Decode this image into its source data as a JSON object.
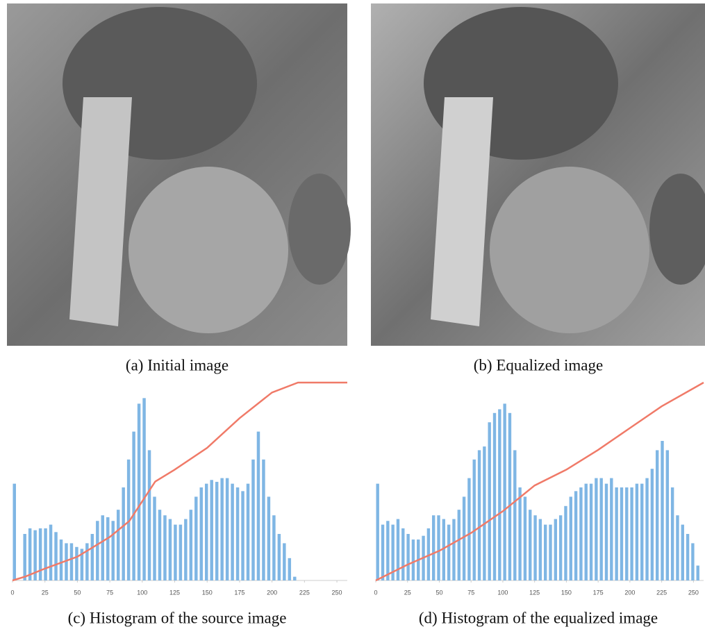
{
  "figure": {
    "panels": [
      {
        "caption": "(a) Initial image"
      },
      {
        "caption": "(b) Equalized image"
      },
      {
        "caption": "(c) Histogram of the source image"
      },
      {
        "caption": "(d) Histogram of the equalized image"
      }
    ]
  },
  "chart_data": [
    {
      "type": "histogram",
      "bins": [
        0,
        4,
        8,
        12,
        16,
        20,
        24,
        28,
        32,
        36,
        40,
        44,
        48,
        52,
        56,
        60,
        64,
        68,
        72,
        76,
        80,
        84,
        88,
        92,
        96,
        100,
        104,
        108,
        112,
        116,
        120,
        124,
        128,
        132,
        136,
        140,
        144,
        148,
        152,
        156,
        160,
        164,
        168,
        172,
        176,
        180,
        184,
        188,
        192,
        196,
        200,
        204,
        208,
        212,
        216,
        220,
        224,
        228,
        232,
        236,
        240,
        244,
        248,
        252,
        256
      ],
      "counts": [
        52,
        0,
        25,
        28,
        27,
        28,
        28,
        30,
        26,
        22,
        20,
        20,
        18,
        17,
        20,
        25,
        32,
        35,
        34,
        32,
        38,
        50,
        65,
        80,
        95,
        98,
        70,
        45,
        38,
        35,
        33,
        30,
        30,
        33,
        38,
        45,
        50,
        52,
        54,
        53,
        55,
        55,
        52,
        50,
        48,
        52,
        65,
        80,
        65,
        45,
        35,
        25,
        20,
        12,
        2,
        0,
        0,
        0,
        0,
        0,
        0,
        0,
        0,
        0
      ],
      "color": "#7fb6e4",
      "ylim": [
        0,
        106
      ],
      "xlim": [
        0,
        258
      ],
      "xticks": [
        0,
        25,
        50,
        75,
        100,
        125,
        150,
        175,
        200,
        225,
        250
      ],
      "y2lim": [
        0,
        100
      ],
      "line": {
        "axis": "y2",
        "color": "#f07a68",
        "x": [
          0,
          10,
          25,
          50,
          75,
          90,
          100,
          110,
          125,
          150,
          175,
          200,
          220,
          258
        ],
        "values": [
          0,
          2,
          6,
          12,
          22,
          30,
          40,
          50,
          56,
          67,
          82,
          95,
          100,
          100
        ]
      }
    },
    {
      "type": "histogram",
      "bins": [
        0,
        4,
        8,
        12,
        16,
        20,
        24,
        28,
        32,
        36,
        40,
        44,
        48,
        52,
        56,
        60,
        64,
        68,
        72,
        76,
        80,
        84,
        88,
        92,
        96,
        100,
        104,
        108,
        112,
        116,
        120,
        124,
        128,
        132,
        136,
        140,
        144,
        148,
        152,
        156,
        160,
        164,
        168,
        172,
        176,
        180,
        184,
        188,
        192,
        196,
        200,
        204,
        208,
        212,
        216,
        220,
        224,
        228,
        232,
        236,
        240,
        244,
        248,
        252,
        256
      ],
      "counts": [
        52,
        30,
        32,
        30,
        33,
        28,
        25,
        22,
        22,
        24,
        28,
        35,
        35,
        33,
        30,
        33,
        38,
        45,
        55,
        65,
        70,
        72,
        85,
        90,
        92,
        95,
        90,
        70,
        50,
        45,
        38,
        35,
        33,
        30,
        30,
        33,
        35,
        40,
        45,
        48,
        50,
        52,
        52,
        55,
        55,
        52,
        55,
        50,
        50,
        50,
        50,
        52,
        52,
        55,
        60,
        70,
        75,
        70,
        50,
        35,
        30,
        25,
        20,
        8
      ],
      "color": "#7fb6e4",
      "ylim": [
        0,
        106
      ],
      "xlim": [
        0,
        258
      ],
      "xticks": [
        0,
        25,
        50,
        75,
        100,
        125,
        150,
        175,
        200,
        225,
        250
      ],
      "y2lim": [
        0,
        100
      ],
      "line": {
        "axis": "y2",
        "color": "#f07a68",
        "x": [
          0,
          25,
          50,
          75,
          100,
          125,
          150,
          175,
          200,
          225,
          258
        ],
        "values": [
          0,
          8,
          15,
          24,
          35,
          48,
          56,
          66,
          77,
          88,
          100
        ]
      }
    }
  ]
}
